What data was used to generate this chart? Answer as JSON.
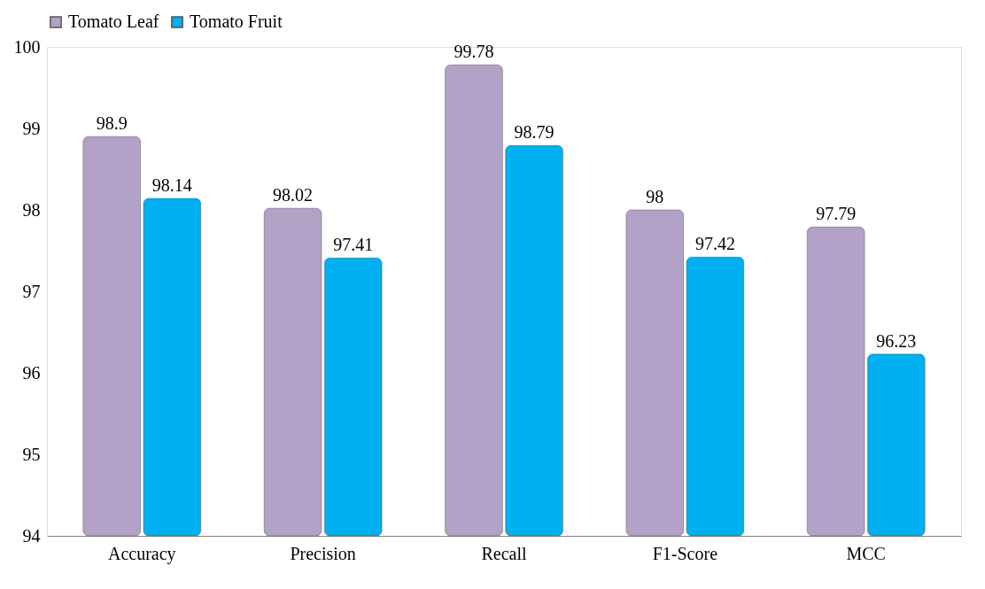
{
  "chart_data": {
    "type": "bar",
    "categories": [
      "Accuracy",
      "Precision",
      "Recall",
      "F1-Score",
      "MCC"
    ],
    "series": [
      {
        "name": "Tomato Leaf",
        "color": "#b3a2c7",
        "values": [
          98.9,
          98.02,
          99.78,
          98,
          97.79
        ]
      },
      {
        "name": "Tomato Fruit",
        "color": "#00b0f0",
        "values": [
          98.14,
          97.41,
          98.79,
          97.42,
          96.23
        ]
      }
    ],
    "ylim": [
      94,
      100
    ],
    "yticks": [
      94,
      95,
      96,
      97,
      98,
      99,
      100
    ],
    "data_labels": true,
    "legend": "top",
    "grid": false
  }
}
